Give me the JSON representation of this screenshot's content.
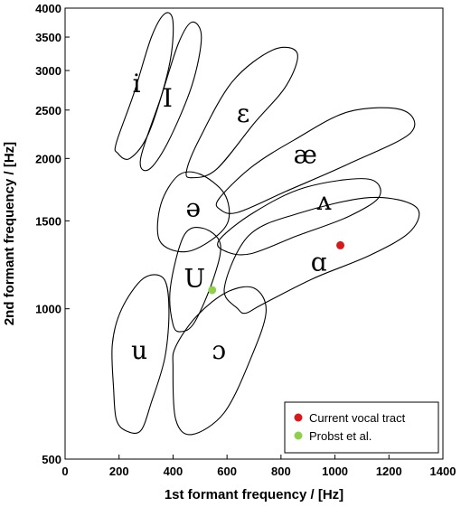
{
  "chart_data": {
    "type": "scatter",
    "xlabel": "1st formant frequency / [Hz]",
    "ylabel": "2nd formant frequency / [Hz]",
    "xlim": [
      0,
      1400
    ],
    "ylim": [
      500,
      4000
    ],
    "yscale": "log",
    "xticks": [
      0,
      200,
      400,
      600,
      800,
      1000,
      1200,
      1400
    ],
    "yticks": [
      500,
      1000,
      1500,
      2000,
      2500,
      3000,
      3500,
      4000
    ],
    "grid": false,
    "legend_position": "bottom-right",
    "vowel_regions": [
      {
        "label": "i",
        "points": [
          [
            190,
            2150
          ],
          [
            255,
            2700
          ],
          [
            320,
            3500
          ],
          [
            370,
            3900
          ],
          [
            400,
            3750
          ],
          [
            385,
            3050
          ],
          [
            310,
            2250
          ],
          [
            240,
            2000
          ],
          [
            195,
            2050
          ]
        ]
      },
      {
        "label": "I",
        "points": [
          [
            280,
            2000
          ],
          [
            355,
            2650
          ],
          [
            420,
            3400
          ],
          [
            470,
            3750
          ],
          [
            505,
            3500
          ],
          [
            470,
            2800
          ],
          [
            380,
            2150
          ],
          [
            310,
            1900
          ]
        ]
      },
      {
        "label": "ε",
        "points": [
          [
            450,
            1890
          ],
          [
            500,
            2200
          ],
          [
            620,
            2850
          ],
          [
            770,
            3300
          ],
          [
            860,
            3250
          ],
          [
            820,
            2800
          ],
          [
            700,
            2350
          ],
          [
            560,
            1900
          ],
          [
            470,
            1830
          ]
        ]
      },
      {
        "label": "æ",
        "points": [
          [
            570,
            1660
          ],
          [
            690,
            1920
          ],
          [
            850,
            2180
          ],
          [
            1050,
            2480
          ],
          [
            1250,
            2500
          ],
          [
            1280,
            2250
          ],
          [
            1050,
            1950
          ],
          [
            820,
            1720
          ],
          [
            640,
            1560
          ],
          [
            575,
            1580
          ]
        ]
      },
      {
        "label": "ə",
        "points": [
          [
            350,
            1370
          ],
          [
            355,
            1620
          ],
          [
            420,
            1850
          ],
          [
            500,
            1860
          ],
          [
            590,
            1700
          ],
          [
            605,
            1500
          ],
          [
            540,
            1370
          ],
          [
            440,
            1300
          ]
        ]
      },
      {
        "label": "ʌ",
        "points": [
          [
            570,
            1370
          ],
          [
            700,
            1560
          ],
          [
            890,
            1750
          ],
          [
            1120,
            1820
          ],
          [
            1165,
            1680
          ],
          [
            1050,
            1530
          ],
          [
            860,
            1400
          ],
          [
            690,
            1290
          ],
          [
            600,
            1300
          ]
        ]
      },
      {
        "label": "U",
        "points": [
          [
            400,
            930
          ],
          [
            390,
            1100
          ],
          [
            440,
            1400
          ],
          [
            510,
            1450
          ],
          [
            575,
            1350
          ],
          [
            550,
            1150
          ],
          [
            480,
            940
          ],
          [
            430,
            900
          ]
        ]
      },
      {
        "label": "ɑ",
        "points": [
          [
            640,
            1000
          ],
          [
            590,
            1100
          ],
          [
            680,
            1400
          ],
          [
            860,
            1550
          ],
          [
            1130,
            1670
          ],
          [
            1300,
            1600
          ],
          [
            1280,
            1430
          ],
          [
            1130,
            1280
          ],
          [
            920,
            1150
          ],
          [
            730,
            1020
          ],
          [
            670,
            980
          ]
        ]
      },
      {
        "label": "u",
        "points": [
          [
            180,
            690
          ],
          [
            175,
            850
          ],
          [
            210,
            1000
          ],
          [
            290,
            1150
          ],
          [
            365,
            1150
          ],
          [
            385,
            1000
          ],
          [
            370,
            800
          ],
          [
            320,
            650
          ],
          [
            280,
            570
          ],
          [
            225,
            570
          ],
          [
            190,
            600
          ]
        ]
      },
      {
        "label": "ɔ",
        "points": [
          [
            400,
            760
          ],
          [
            410,
            600
          ],
          [
            470,
            560
          ],
          [
            590,
            620
          ],
          [
            690,
            800
          ],
          [
            745,
            990
          ],
          [
            700,
            1100
          ],
          [
            600,
            1080
          ],
          [
            490,
            970
          ],
          [
            410,
            840
          ]
        ]
      }
    ],
    "vowel_label_positions": [
      {
        "label": "i",
        "x": 265,
        "y": 2800
      },
      {
        "label": "I",
        "x": 380,
        "y": 2620
      },
      {
        "label": "ε",
        "x": 660,
        "y": 2440
      },
      {
        "label": "æ",
        "x": 890,
        "y": 2020
      },
      {
        "label": "ə",
        "x": 475,
        "y": 1580
      },
      {
        "label": "ʌ",
        "x": 960,
        "y": 1630
      },
      {
        "label": "U",
        "x": 480,
        "y": 1140
      },
      {
        "label": "ɑ",
        "x": 940,
        "y": 1230
      },
      {
        "label": "u",
        "x": 275,
        "y": 820
      },
      {
        "label": "ɔ",
        "x": 570,
        "y": 820
      }
    ],
    "series": [
      {
        "name": "Current vocal tract",
        "color": "#d7191c",
        "x": [
          1020
        ],
        "y": [
          1340
        ]
      },
      {
        "name": "Probst et al.",
        "color": "#8ed04b",
        "x": [
          545
        ],
        "y": [
          1090
        ]
      }
    ]
  }
}
